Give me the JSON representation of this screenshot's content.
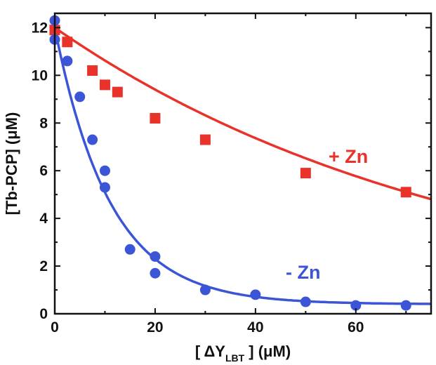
{
  "chart_data": {
    "type": "scatter",
    "title": "",
    "xlabel": {
      "pre": "[ ΔY",
      "sub": "LBT",
      "post": " ] (μM)"
    },
    "ylabel": "[Tb-PCP] (μM)",
    "xlim": [
      0,
      75
    ],
    "ylim": [
      0,
      12.6
    ],
    "xticks": [
      0,
      20,
      40,
      60
    ],
    "yticks": [
      0,
      2,
      4,
      6,
      8,
      10,
      12
    ],
    "series": [
      {
        "name": "+ Zn",
        "color": "#e8322a",
        "marker": "square",
        "points": [
          [
            0,
            11.9
          ],
          [
            2.5,
            11.4
          ],
          [
            7.5,
            10.2
          ],
          [
            10,
            9.6
          ],
          [
            12.5,
            9.3
          ],
          [
            20,
            8.2
          ],
          [
            30,
            7.3
          ],
          [
            50,
            5.9
          ],
          [
            70,
            5.1
          ]
        ],
        "fit": {
          "A": 12.0,
          "k": 0.0122
        }
      },
      {
        "name": "- Zn",
        "color": "#3b55d6",
        "marker": "circle",
        "points": [
          [
            0,
            12.3
          ],
          [
            0,
            11.5
          ],
          [
            2.5,
            10.6
          ],
          [
            5,
            9.1
          ],
          [
            7.5,
            7.3
          ],
          [
            10,
            6.0
          ],
          [
            10,
            5.3
          ],
          [
            15,
            2.7
          ],
          [
            20,
            2.4
          ],
          [
            20,
            1.7
          ],
          [
            30,
            1.0
          ],
          [
            40,
            0.8
          ],
          [
            50,
            0.5
          ],
          [
            60,
            0.35
          ],
          [
            70,
            0.35
          ]
        ],
        "fit": {
          "A": 12.0,
          "k": 0.0905,
          "c": 0.4
        }
      }
    ]
  }
}
